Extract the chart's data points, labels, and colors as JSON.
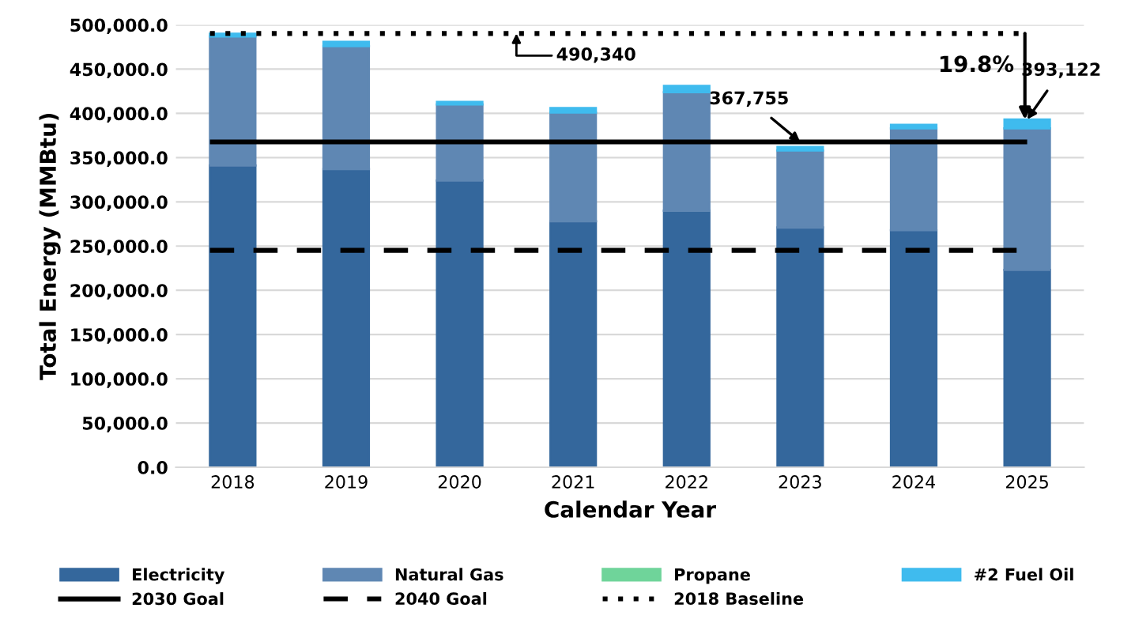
{
  "chart_data": {
    "type": "bar",
    "stacked": true,
    "xlabel": "Calendar Year",
    "ylabel": "Total Energy (MMBtu)",
    "categories": [
      "2018",
      "2019",
      "2020",
      "2021",
      "2022",
      "2023",
      "2024",
      "2025"
    ],
    "series": [
      {
        "name": "Electricity",
        "color": "#34679c",
        "values": [
          341000,
          337000,
          324000,
          278000,
          290000,
          271000,
          268000,
          223000
        ]
      },
      {
        "name": "Natural Gas",
        "color": "#5f87b3",
        "values": [
          146000,
          139000,
          86000,
          123000,
          134000,
          87000,
          115000,
          160000
        ]
      },
      {
        "name": "Propane",
        "color": "#6fd49a",
        "values": [
          null,
          null,
          null,
          null,
          null,
          null,
          null,
          null
        ]
      },
      {
        "name": "#2 Fuel Oil",
        "color": "#3fbbee",
        "values": [
          3000,
          5000,
          3000,
          5000,
          7000,
          4000,
          4000,
          10000
        ]
      }
    ],
    "ylim": [
      0,
      500000
    ],
    "yticks": [
      {
        "value": 0,
        "label": "0.0"
      },
      {
        "value": 50000,
        "label": "50,000.0"
      },
      {
        "value": 100000,
        "label": "100,000.0"
      },
      {
        "value": 150000,
        "label": "150,000.0"
      },
      {
        "value": 200000,
        "label": "200,000.0"
      },
      {
        "value": 250000,
        "label": "250,000.0"
      },
      {
        "value": 300000,
        "label": "300,000.0"
      },
      {
        "value": 350000,
        "label": "350,000.0"
      },
      {
        "value": 400000,
        "label": "400,000.0"
      },
      {
        "value": 450000,
        "label": "450,000.0"
      },
      {
        "value": 500000,
        "label": "500,000.0"
      }
    ],
    "ref_lines": [
      {
        "axis": "y",
        "value": 367755,
        "label": "2030 Goal",
        "color": "#000000",
        "line_style": "solid"
      },
      {
        "axis": "y",
        "value": 245170,
        "label": "2040 Goal",
        "color": "#000000",
        "line_style": "dashed"
      },
      {
        "axis": "y",
        "value": 490340,
        "label": "2018 Baseline",
        "color": "#000000",
        "line_style": "dotted"
      }
    ],
    "annotations": [
      {
        "text": "490,340",
        "x": "2021",
        "y": 490340
      },
      {
        "text": "367,755",
        "x": "2023",
        "y": 367755
      },
      {
        "text": "393,122",
        "x": "2025",
        "y": 393122
      },
      "19.8%"
    ],
    "grid": "y",
    "legend": "bottom"
  }
}
